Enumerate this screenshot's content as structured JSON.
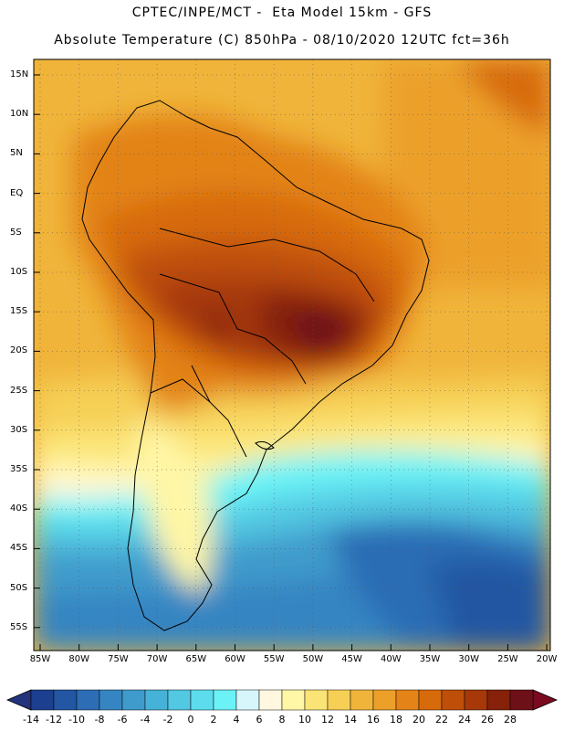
{
  "header": {
    "line1": "CPTEC/INPE/MCT -  Eta Model 15km - GFS",
    "line2": "Absolute Temperature (C) 850hPa - 08/10/2020 12UTC fct=36h"
  },
  "map": {
    "lat_labels": [
      "15N",
      "10N",
      "5N",
      "EQ",
      "5S",
      "10S",
      "15S",
      "20S",
      "25S",
      "30S",
      "35S",
      "40S",
      "45S",
      "50S",
      "55S"
    ],
    "lat_values": [
      15,
      10,
      5,
      0,
      -5,
      -10,
      -15,
      -20,
      -25,
      -30,
      -35,
      -40,
      -45,
      -50,
      -55
    ],
    "lon_labels": [
      "85W",
      "80W",
      "75W",
      "70W",
      "65W",
      "60W",
      "55W",
      "50W",
      "45W",
      "40W",
      "35W",
      "30W",
      "25W",
      "20W"
    ],
    "lon_values": [
      -85,
      -80,
      -75,
      -70,
      -65,
      -60,
      -55,
      -50,
      -45,
      -40,
      -35,
      -30,
      -25,
      -20
    ]
  },
  "colorbar": {
    "labels": [
      "-14",
      "-12",
      "-10",
      "-8",
      "-6",
      "-4",
      "-2",
      "0",
      "2",
      "4",
      "6",
      "8",
      "10",
      "12",
      "14",
      "16",
      "18",
      "20",
      "22",
      "24",
      "26",
      "28"
    ],
    "colors": [
      "#1d3f8f",
      "#2356a3",
      "#2c6db5",
      "#3585c2",
      "#3f9bcc",
      "#47b2d8",
      "#52c8e2",
      "#5cdcec",
      "#6af2f6",
      "#d6f6fb",
      "#fff7df",
      "#fff6a6",
      "#fbe476",
      "#f6cf55",
      "#f0b43b",
      "#eca02a",
      "#e38318",
      "#d76a0b",
      "#bf4f08",
      "#a6380a",
      "#86210a",
      "#6d1018"
    ],
    "low_color": "#23337e",
    "high_color": "#7a0a20"
  }
}
